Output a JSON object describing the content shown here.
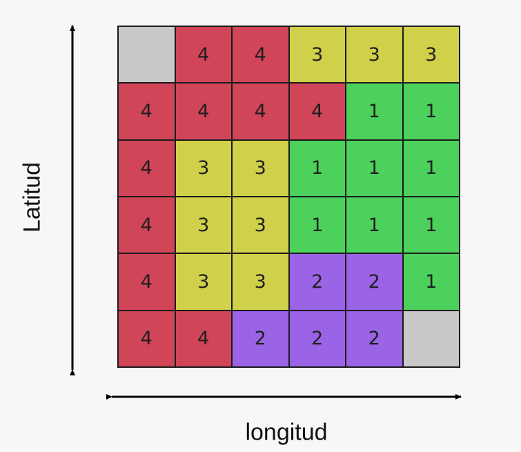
{
  "axes": {
    "latitude_label": "Latitud",
    "longitude_label": "longitud"
  },
  "colors": {
    "1": "#4bd15c",
    "2": "#9b63e6",
    "3": "#d0d04a",
    "4": "#d14558",
    "empty": "#c9c9c9"
  },
  "grid": {
    "rows": [
      [
        "",
        "4",
        "4",
        "3",
        "3",
        "3"
      ],
      [
        "4",
        "4",
        "4",
        "4",
        "1",
        "1"
      ],
      [
        "4",
        "3",
        "3",
        "1",
        "1",
        "1"
      ],
      [
        "4",
        "3",
        "3",
        "1",
        "1",
        "1"
      ],
      [
        "4",
        "3",
        "3",
        "2",
        "2",
        "1"
      ],
      [
        "4",
        "4",
        "2",
        "2",
        "2",
        ""
      ]
    ]
  }
}
